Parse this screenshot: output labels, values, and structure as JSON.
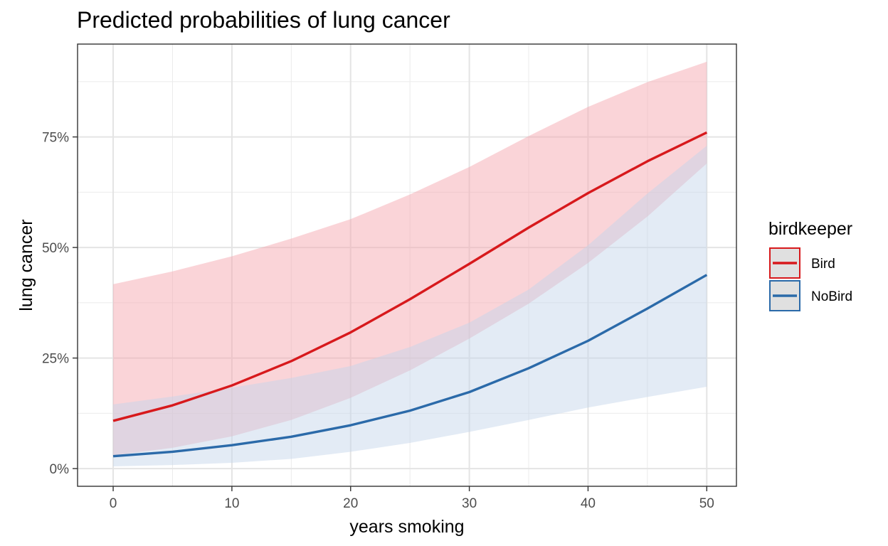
{
  "chart_data": {
    "type": "line",
    "title": "Predicted probabilities of lung cancer",
    "xlabel": "years smoking",
    "ylabel": "lung cancer",
    "xlim": [
      -3,
      52.5
    ],
    "ylim": [
      -0.04,
      0.96
    ],
    "x_ticks": [
      0,
      10,
      20,
      30,
      40,
      50
    ],
    "y_ticks": [
      0,
      0.25,
      0.5,
      0.75
    ],
    "x_tick_labels": [
      "0",
      "10",
      "20",
      "30",
      "40",
      "50"
    ],
    "y_tick_labels": [
      "0%",
      "25%",
      "50%",
      "75%"
    ],
    "grid": true,
    "legend": {
      "title": "birdkeeper",
      "position": "right"
    },
    "x": [
      0,
      5,
      10,
      15,
      20,
      25,
      30,
      35,
      40,
      45,
      50
    ],
    "series": [
      {
        "name": "Bird",
        "color": "#d7191c",
        "fill": "#f4a6ae",
        "values": [
          0.108,
          0.143,
          0.188,
          0.243,
          0.308,
          0.383,
          0.463,
          0.545,
          0.623,
          0.695,
          0.76
        ],
        "lower": [
          0.03,
          0.047,
          0.073,
          0.11,
          0.16,
          0.222,
          0.294,
          0.373,
          0.465,
          0.57,
          0.69
        ],
        "upper": [
          0.417,
          0.446,
          0.48,
          0.52,
          0.564,
          0.62,
          0.682,
          0.752,
          0.818,
          0.874,
          0.92
        ]
      },
      {
        "name": "NoBird",
        "color": "#2b6aa9",
        "fill": "#c5d5ea",
        "values": [
          0.028,
          0.038,
          0.053,
          0.072,
          0.098,
          0.131,
          0.173,
          0.227,
          0.289,
          0.362,
          0.438
        ],
        "lower": [
          0.005,
          0.008,
          0.013,
          0.022,
          0.038,
          0.058,
          0.083,
          0.11,
          0.138,
          0.162,
          0.185
        ],
        "upper": [
          0.145,
          0.163,
          0.183,
          0.205,
          0.232,
          0.275,
          0.33,
          0.405,
          0.505,
          0.622,
          0.73
        ]
      }
    ]
  }
}
